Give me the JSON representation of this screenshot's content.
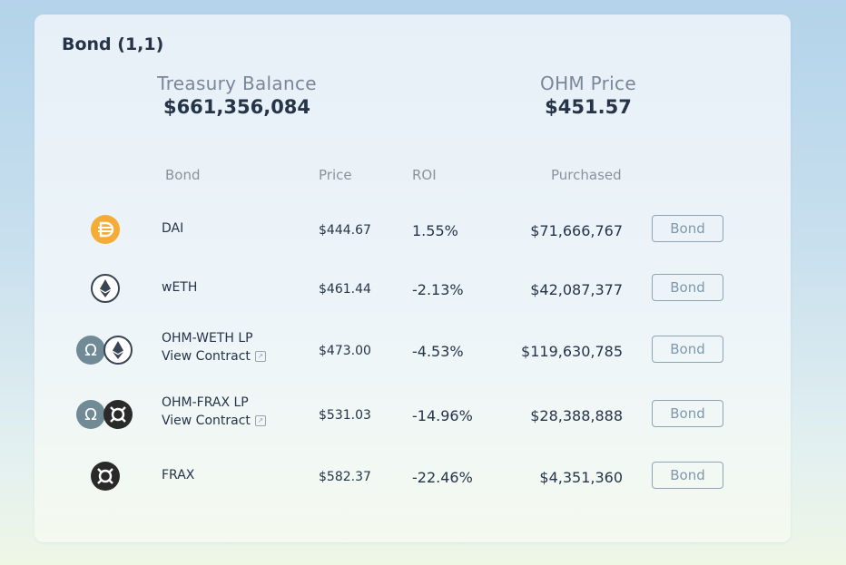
{
  "header": {
    "title": "Bond (1,1)"
  },
  "metrics": {
    "treasury_label": "Treasury Balance",
    "treasury_value": "$661,356,084",
    "ohm_label": "OHM Price",
    "ohm_value": "$451.57"
  },
  "table": {
    "columns": [
      "Bond",
      "Price",
      "ROI",
      "Purchased"
    ],
    "rows": [
      {
        "name": "DAI",
        "link": "",
        "price": "$444.67",
        "roi": "1.55%",
        "purchased": "$71,666,767",
        "action": "Bond",
        "icons": [
          "dai-icon"
        ]
      },
      {
        "name": "wETH",
        "link": "",
        "price": "$461.44",
        "roi": "-2.13%",
        "purchased": "$42,087,377",
        "action": "Bond",
        "icons": [
          "eth-icon"
        ]
      },
      {
        "name": "OHM-WETH LP",
        "link": "View Contract",
        "price": "$473.00",
        "roi": "-4.53%",
        "purchased": "$119,630,785",
        "action": "Bond",
        "icons": [
          "ohm-icon",
          "eth-icon"
        ]
      },
      {
        "name": "OHM-FRAX LP",
        "link": "View Contract",
        "price": "$531.03",
        "roi": "-14.96%",
        "purchased": "$28,388,888",
        "action": "Bond",
        "icons": [
          "ohm-icon",
          "frax-icon"
        ]
      },
      {
        "name": "FRAX",
        "link": "",
        "price": "$582.37",
        "roi": "-22.46%",
        "purchased": "$4,351,360",
        "action": "Bond",
        "icons": [
          "frax-icon"
        ]
      }
    ]
  },
  "colors": {
    "dai": "#f5ac37",
    "ohm": "#708b96",
    "frax": "#2a2a2a",
    "eth_ring": "#253449",
    "button_border": "#8fa3b6"
  }
}
